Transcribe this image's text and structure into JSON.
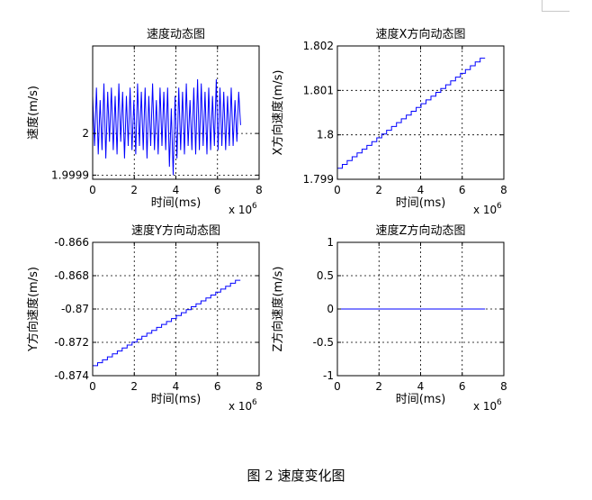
{
  "figure": {
    "caption": "图 2  速度变化图"
  },
  "chart_data": [
    {
      "type": "line",
      "title": "速度动态图",
      "xlabel": "时间(ms)",
      "ylabel": "速度(m/s)",
      "x_multiplier": "x 10",
      "x_exponent": "6",
      "xlim": [
        0,
        8
      ],
      "ylim": [
        1.99989,
        2.00021
      ],
      "x_ticks": [
        0,
        2,
        4,
        6,
        8
      ],
      "x_tick_labels": [
        "0",
        "2",
        "4",
        "6",
        "8"
      ],
      "y_ticks": [
        1.9999,
        2
      ],
      "y_tick_labels": [
        "1.9999",
        "2"
      ],
      "grid": true,
      "line_color": "#0000ff",
      "series": [
        {
          "x": [
            0.0,
            0.09,
            0.18,
            0.27,
            0.36,
            0.45,
            0.54,
            0.63,
            0.72,
            0.81,
            0.9,
            0.99,
            1.08,
            1.17,
            1.26,
            1.35,
            1.44,
            1.53,
            1.62,
            1.71,
            1.8,
            1.89,
            1.98,
            2.07,
            2.16,
            2.25,
            2.34,
            2.43,
            2.52,
            2.61,
            2.7,
            2.79,
            2.88,
            2.97,
            3.06,
            3.15,
            3.24,
            3.33,
            3.42,
            3.51,
            3.6,
            3.69,
            3.78,
            3.87,
            3.96,
            4.05,
            4.14,
            4.23,
            4.32,
            4.41,
            4.5,
            4.59,
            4.68,
            4.77,
            4.86,
            4.95,
            5.04,
            5.13,
            5.22,
            5.31,
            5.4,
            5.49,
            5.58,
            5.67,
            5.76,
            5.85,
            5.94,
            6.03,
            6.12,
            6.21,
            6.3,
            6.39,
            6.48,
            6.57,
            6.66,
            6.75,
            6.84,
            6.93,
            7.02,
            7.11
          ],
          "values": [
            2.00009,
            1.99997,
            2.00011,
            1.99995,
            2.00008,
            1.99996,
            2.00012,
            1.99994,
            2.0001,
            1.99998,
            2.00011,
            1.99996,
            2.00009,
            1.99995,
            2.00012,
            1.99998,
            2.0001,
            1.99994,
            2.00009,
            1.99997,
            2.00011,
            1.99996,
            2.00008,
            1.99995,
            2.00012,
            1.99997,
            2.0001,
            1.99996,
            2.00011,
            1.99994,
            2.00009,
            1.99997,
            2.00012,
            1.99996,
            2.00008,
            1.99995,
            2.00011,
            1.99997,
            2.0001,
            1.99996,
            2.00011,
            1.99992,
            2.00006,
            1.9999,
            2.00009,
            1.99994,
            2.00011,
            1.99996,
            2.0001,
            1.99995,
            2.00012,
            1.99997,
            2.00008,
            1.99996,
            2.00011,
            1.99995,
            2.00013,
            1.99996,
            2.00012,
            1.99997,
            2.0001,
            1.99995,
            2.00011,
            1.99996,
            2.00009,
            1.99997,
            2.00013,
            1.99996,
            2.00011,
            1.99997,
            2.0001,
            1.99996,
            2.00009,
            1.99997,
            2.00011,
            1.99997,
            2.00008,
            1.99998,
            2.0001,
            2.00002
          ]
        }
      ]
    },
    {
      "type": "line",
      "title": "速度X方向动态图",
      "xlabel": "时间(ms)",
      "ylabel": "X方向速度(m/s)",
      "x_multiplier": "x 10",
      "x_exponent": "6",
      "xlim": [
        0,
        8
      ],
      "ylim": [
        1.799,
        1.802
      ],
      "x_ticks": [
        0,
        2,
        4,
        6,
        8
      ],
      "x_tick_labels": [
        "0",
        "2",
        "4",
        "6",
        "8"
      ],
      "y_ticks": [
        1.799,
        1.8,
        1.801,
        1.802
      ],
      "y_tick_labels": [
        "1.799",
        "1.8",
        "1.801",
        "1.802"
      ],
      "grid": true,
      "line_color": "#0000ff",
      "series": [
        {
          "x": [
            0,
            7.1
          ],
          "values": [
            1.79925,
            1.80181
          ]
        }
      ]
    },
    {
      "type": "line",
      "title": "速度Y方向动态图",
      "xlabel": "时间(ms)",
      "ylabel": "Y方向速度(m/s)",
      "x_multiplier": "x 10",
      "x_exponent": "6",
      "xlim": [
        0,
        8
      ],
      "ylim": [
        -0.874,
        -0.866
      ],
      "x_ticks": [
        0,
        2,
        4,
        6,
        8
      ],
      "x_tick_labels": [
        "0",
        "2",
        "4",
        "6",
        "8"
      ],
      "y_ticks": [
        -0.874,
        -0.872,
        -0.87,
        -0.868,
        -0.866
      ],
      "y_tick_labels": [
        "-0.874",
        "-0.872",
        "-0.87",
        "-0.868",
        "-0.866"
      ],
      "grid": true,
      "line_color": "#0000ff",
      "series": [
        {
          "x": [
            0,
            7.1
          ],
          "values": [
            -0.8734,
            -0.8681
          ]
        }
      ]
    },
    {
      "type": "line",
      "title": "速度Z方向动态图",
      "xlabel": "时间(ms)",
      "ylabel": "Z方向速度(m/s)",
      "x_multiplier": "x 10",
      "x_exponent": "6",
      "xlim": [
        0,
        8
      ],
      "ylim": [
        -1,
        1
      ],
      "x_ticks": [
        0,
        2,
        4,
        6,
        8
      ],
      "x_tick_labels": [
        "0",
        "2",
        "4",
        "6",
        "8"
      ],
      "y_ticks": [
        -1,
        -0.5,
        0,
        0.5,
        1
      ],
      "y_tick_labels": [
        "-1",
        "-0.5",
        "0",
        "0.5",
        "1"
      ],
      "grid": true,
      "line_color": "#0000ff",
      "series": [
        {
          "x": [
            0,
            7.1
          ],
          "values": [
            0,
            0
          ]
        }
      ]
    }
  ]
}
